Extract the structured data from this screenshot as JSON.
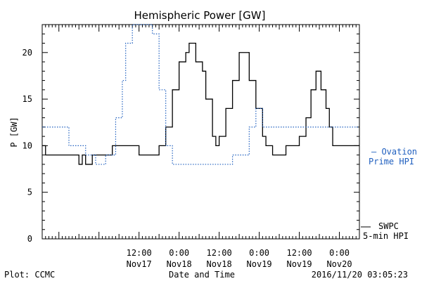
{
  "chart_data": {
    "type": "line",
    "title": "Hemispheric Power [GW]",
    "ylabel": "P [GW]",
    "xlabel": "Date and Time",
    "ylim": [
      0,
      23
    ],
    "xlim": [
      "2016-11-16 07:00",
      "2016-11-20 06:00"
    ],
    "yticks": [
      0,
      5,
      10,
      15,
      20
    ],
    "xticks": [
      {
        "x": "2016-11-17 12:00",
        "time": "12:00",
        "date": "Nov17"
      },
      {
        "x": "2016-11-18 00:00",
        "time": "0:00",
        "date": "Nov18"
      },
      {
        "x": "2016-11-18 12:00",
        "time": "12:00",
        "date": "Nov18"
      },
      {
        "x": "2016-11-19 00:00",
        "time": "0:00",
        "date": "Nov19"
      },
      {
        "x": "2016-11-19 12:00",
        "time": "12:00",
        "date": "Nov19"
      },
      {
        "x": "2016-11-20 00:00",
        "time": "0:00",
        "date": "Nov20"
      }
    ],
    "series": [
      {
        "name": "SWPC 5-min HPI",
        "label_lines": [
          "SWPC",
          "5-min HPI"
        ],
        "color": "#000000",
        "style": "solid",
        "points": [
          [
            "2016-11-16 07:00",
            10
          ],
          [
            "2016-11-16 08:00",
            9
          ],
          [
            "2016-11-16 17:00",
            9
          ],
          [
            "2016-11-16 18:00",
            8
          ],
          [
            "2016-11-16 19:00",
            9
          ],
          [
            "2016-11-16 20:00",
            8
          ],
          [
            "2016-11-16 22:00",
            9
          ],
          [
            "2016-11-17 02:00",
            9
          ],
          [
            "2016-11-17 04:00",
            10
          ],
          [
            "2016-11-17 10:00",
            10
          ],
          [
            "2016-11-17 12:00",
            9
          ],
          [
            "2016-11-17 16:00",
            9
          ],
          [
            "2016-11-17 18:00",
            10
          ],
          [
            "2016-11-17 20:00",
            12
          ],
          [
            "2016-11-17 22:00",
            16
          ],
          [
            "2016-11-18 00:00",
            19
          ],
          [
            "2016-11-18 02:00",
            20
          ],
          [
            "2016-11-18 03:00",
            21
          ],
          [
            "2016-11-18 05:00",
            19
          ],
          [
            "2016-11-18 07:00",
            18
          ],
          [
            "2016-11-18 08:00",
            15
          ],
          [
            "2016-11-18 10:00",
            11
          ],
          [
            "2016-11-18 11:00",
            10
          ],
          [
            "2016-11-18 12:00",
            11
          ],
          [
            "2016-11-18 14:00",
            14
          ],
          [
            "2016-11-18 16:00",
            17
          ],
          [
            "2016-11-18 18:00",
            20
          ],
          [
            "2016-11-18 19:00",
            20
          ],
          [
            "2016-11-18 21:00",
            17
          ],
          [
            "2016-11-18 23:00",
            14
          ],
          [
            "2016-11-19 01:00",
            11
          ],
          [
            "2016-11-19 02:00",
            10
          ],
          [
            "2016-11-19 04:00",
            9
          ],
          [
            "2016-11-19 07:00",
            9
          ],
          [
            "2016-11-19 08:00",
            10
          ],
          [
            "2016-11-19 10:00",
            10
          ],
          [
            "2016-11-19 12:00",
            11
          ],
          [
            "2016-11-19 14:00",
            13
          ],
          [
            "2016-11-19 15:30",
            16
          ],
          [
            "2016-11-19 17:00",
            18
          ],
          [
            "2016-11-19 18:30",
            16
          ],
          [
            "2016-11-19 20:00",
            14
          ],
          [
            "2016-11-19 21:00",
            12
          ],
          [
            "2016-11-19 22:00",
            10
          ],
          [
            "2016-11-19 23:00",
            10
          ],
          [
            "2016-11-20 00:00",
            10
          ],
          [
            "2016-11-19 14:00",
            10
          ],
          [
            "2016-11-19 23:00",
            10
          ]
        ]
      },
      {
        "name": "Ovation Prime HPI",
        "label_lines": [
          "– Ovation",
          "Prime HPI"
        ],
        "color": "#1f5fbf",
        "style": "dotted",
        "points": [
          [
            "2016-11-16 07:00",
            12
          ],
          [
            "2016-11-16 12:00",
            12
          ],
          [
            "2016-11-16 15:00",
            10
          ],
          [
            "2016-11-16 20:00",
            9
          ],
          [
            "2016-11-16 23:00",
            8
          ],
          [
            "2016-11-17 02:00",
            9
          ],
          [
            "2016-11-17 05:00",
            13
          ],
          [
            "2016-11-17 07:00",
            17
          ],
          [
            "2016-11-17 08:00",
            21
          ],
          [
            "2016-11-17 10:00",
            23
          ],
          [
            "2016-11-17 14:00",
            23
          ],
          [
            "2016-11-17 16:00",
            22
          ],
          [
            "2016-11-17 18:00",
            16
          ],
          [
            "2016-11-17 20:00",
            10
          ],
          [
            "2016-11-17 22:00",
            8
          ],
          [
            "2016-11-18 14:00",
            8
          ],
          [
            "2016-11-18 16:00",
            9
          ],
          [
            "2016-11-18 19:00",
            9
          ],
          [
            "2016-11-18 21:00",
            12
          ],
          [
            "2016-11-18 23:00",
            14
          ],
          [
            "2016-11-19 01:00",
            12
          ]
        ]
      }
    ]
  },
  "footer": {
    "left": "Plot: CCMC",
    "center": "Date and Time",
    "right": "2016/11/20 03:05:23"
  }
}
